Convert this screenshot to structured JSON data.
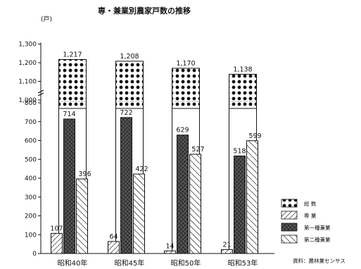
{
  "chart_data": {
    "type": "bar",
    "title": "専・兼業別農家戸数の推移",
    "unit": "(戸)",
    "categories": [
      "昭和40年",
      "昭和45年",
      "昭和50年",
      "昭和53年"
    ],
    "total": {
      "name": "総 数",
      "values": [
        1217,
        1208,
        1170,
        1138
      ]
    },
    "series": [
      {
        "name": "専 業",
        "values": [
          107,
          64,
          14,
          21
        ]
      },
      {
        "name": "第一種兼業",
        "values": [
          714,
          722,
          629,
          518
        ]
      },
      {
        "name": "第二種兼業",
        "values": [
          396,
          422,
          527,
          599
        ]
      }
    ],
    "yticks": [
      "0",
      "100",
      "200",
      "300",
      "400",
      "500",
      "600",
      "700",
      "800",
      "1,000",
      "1,100",
      "1,200",
      "1,300"
    ],
    "axis_break": [
      800,
      1000
    ],
    "source": "資料：農林業センサス",
    "grid": false,
    "legend_position": "bottom-right"
  }
}
